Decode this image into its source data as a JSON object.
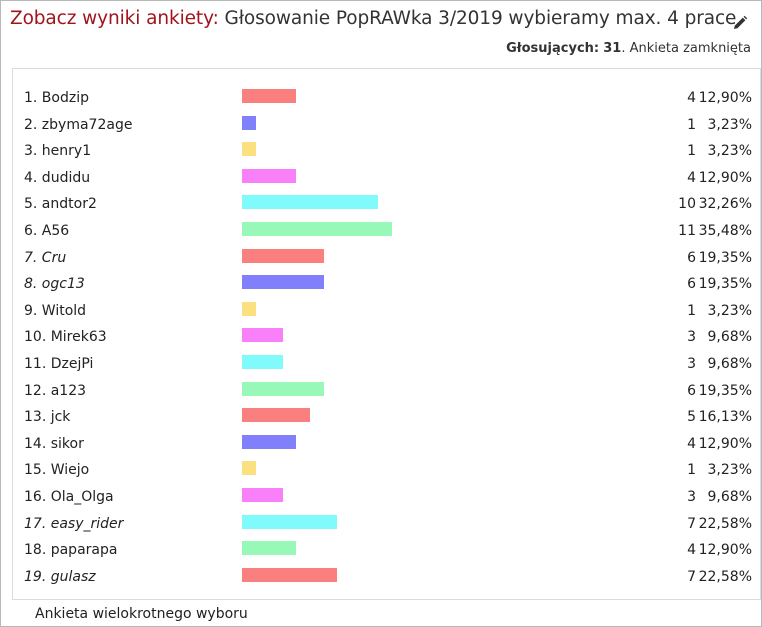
{
  "poll": {
    "title_prefix": "Zobacz wyniki ankiety:",
    "title_name": "Głosowanie PopRAWka 3/2019 wybieramy max. 4 prace",
    "voters_label": "Głosujących:",
    "voters_value": "31",
    "status": ". Ankieta zamknięta",
    "footer": "Ankieta wielokrotnego wyboru"
  },
  "colors": [
    "#fa8080",
    "#8080fa",
    "#fae080",
    "#fa80fa",
    "#80fafa",
    "#98f8b8"
  ],
  "options": [
    {
      "label": "1. Bodzip",
      "votes": 4,
      "percent": "12,90%",
      "italic": false
    },
    {
      "label": "2. zbyma72age",
      "votes": 1,
      "percent": "3,23%",
      "italic": false
    },
    {
      "label": "3. henry1",
      "votes": 1,
      "percent": "3,23%",
      "italic": false
    },
    {
      "label": "4. dudidu",
      "votes": 4,
      "percent": "12,90%",
      "italic": false
    },
    {
      "label": "5. andtor2",
      "votes": 10,
      "percent": "32,26%",
      "italic": false
    },
    {
      "label": "6. A56",
      "votes": 11,
      "percent": "35,48%",
      "italic": false
    },
    {
      "label": "7. Cru",
      "votes": 6,
      "percent": "19,35%",
      "italic": true
    },
    {
      "label": "8. ogc13",
      "votes": 6,
      "percent": "19,35%",
      "italic": true
    },
    {
      "label": "9. Witold",
      "votes": 1,
      "percent": "3,23%",
      "italic": false
    },
    {
      "label": "10. Mirek63",
      "votes": 3,
      "percent": "9,68%",
      "italic": false
    },
    {
      "label": "11. DzejPi",
      "votes": 3,
      "percent": "9,68%",
      "italic": false
    },
    {
      "label": "12. a123",
      "votes": 6,
      "percent": "19,35%",
      "italic": false
    },
    {
      "label": "13. jck",
      "votes": 5,
      "percent": "16,13%",
      "italic": false
    },
    {
      "label": "14. sikor",
      "votes": 4,
      "percent": "12,90%",
      "italic": false
    },
    {
      "label": "15. Wiejo",
      "votes": 1,
      "percent": "3,23%",
      "italic": false
    },
    {
      "label": "16. Ola_Olga",
      "votes": 3,
      "percent": "9,68%",
      "italic": false
    },
    {
      "label": "17. easy_rider",
      "votes": 7,
      "percent": "22,58%",
      "italic": true
    },
    {
      "label": "18. paparapa",
      "votes": 4,
      "percent": "12,90%",
      "italic": false
    },
    {
      "label": "19. gulasz",
      "votes": 7,
      "percent": "22,58%",
      "italic": true
    }
  ]
}
